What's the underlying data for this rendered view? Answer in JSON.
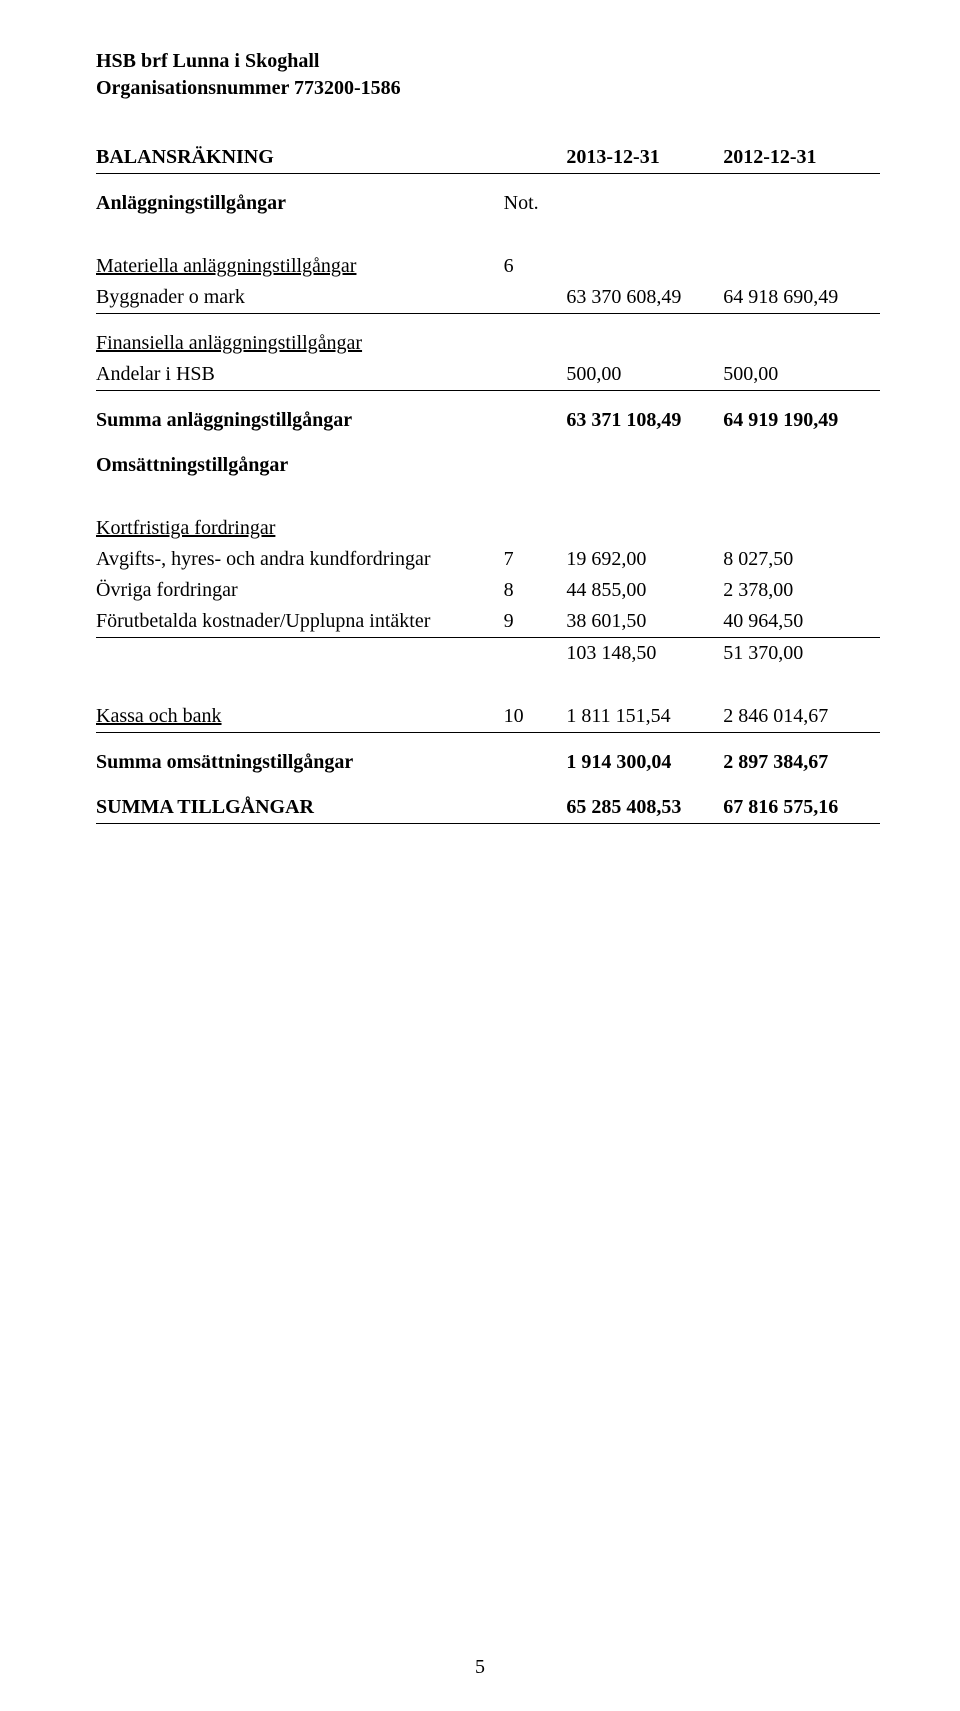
{
  "header": {
    "line1": "HSB brf Lunna i Skoghall",
    "line2": "Organisationsnummer 773200-1586"
  },
  "title_row": {
    "title": "BALANSRÄKNING",
    "note_header": "Not.",
    "col_y1": "2013-12-31",
    "col_y2": "2012-12-31"
  },
  "sections": {
    "anlaggning_heading": "Anläggningstillgångar",
    "materiella_heading": "Materiella anläggningstillgångar",
    "materiella_note": "6",
    "byggnader": {
      "label": "Byggnader o mark",
      "y1": "63 370 608,49",
      "y2": "64 918 690,49"
    },
    "finansiella_heading": "Finansiella anläggningstillgångar",
    "andelar": {
      "label": "Andelar i HSB",
      "y1": "500,00",
      "y2": "500,00"
    },
    "summa_anlaggning": {
      "label": "Summa anläggningstillgångar",
      "y1": "63 371 108,49",
      "y2": "64 919 190,49"
    },
    "omsattning_heading": "Omsättningstillgångar",
    "kortfristiga_heading": "Kortfristiga fordringar",
    "avgifts": {
      "label": "Avgifts-, hyres- och andra kundfordringar",
      "note": "7",
      "y1": "19 692,00",
      "y2": "8 027,50"
    },
    "ovriga_fordringar": {
      "label": "Övriga fordringar",
      "note": "8",
      "y1": "44 855,00",
      "y2": "2 378,00"
    },
    "forutbetalda": {
      "label": "Förutbetalda kostnader/Upplupna intäkter",
      "note": "9",
      "y1": "38 601,50",
      "y2": "40 964,50"
    },
    "kortfristiga_sum": {
      "y1": "103 148,50",
      "y2": "51 370,00"
    },
    "kassa_bank": {
      "label": "Kassa och bank",
      "note": "10",
      "y1": "1 811 151,54",
      "y2": "2 846 014,67"
    },
    "summa_omsattning": {
      "label": "Summa omsättningstillgångar",
      "y1": "1 914 300,04",
      "y2": "2 897 384,67"
    },
    "summa_tillgangar": {
      "label": "SUMMA TILLGÅNGAR",
      "y1": "65 285 408,53",
      "y2": "67 816 575,16"
    }
  },
  "page_number": "5"
}
